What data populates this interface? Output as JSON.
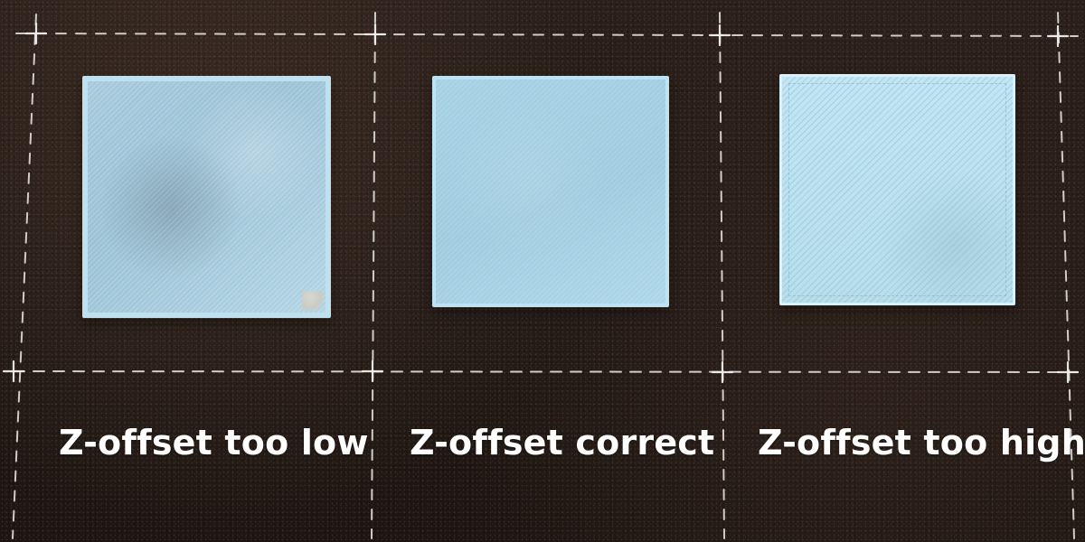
{
  "scene": {
    "captions": {
      "left": "Z-offset too low",
      "center": "Z-offset correct",
      "right": "Z-offset too high"
    },
    "colors": {
      "build_plate": "#241a16",
      "grid_marks": "#d9d6d3",
      "filament": "#a9d3e6",
      "caption_text": "#ffffff"
    }
  }
}
